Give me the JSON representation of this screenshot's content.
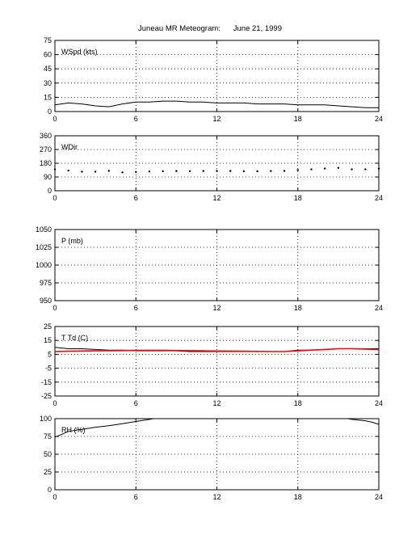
{
  "figure": {
    "title": "Juneau MR Meteogram:      June 21, 1999"
  },
  "chart_data": [
    {
      "type": "line",
      "label": "WSpd (kts)",
      "xlim": [
        0,
        24
      ],
      "xticks": [
        0,
        6,
        12,
        18,
        24
      ],
      "ylim": [
        0,
        75
      ],
      "yticks": [
        0,
        15,
        30,
        45,
        60,
        75
      ],
      "grid": true,
      "series": [
        {
          "color": "#000000",
          "x": [
            0,
            1,
            2,
            3,
            4,
            5,
            6,
            7,
            8,
            9,
            10,
            11,
            12,
            13,
            14,
            15,
            16,
            17,
            18,
            19,
            20,
            21,
            22,
            23,
            24
          ],
          "values": [
            7,
            9,
            8,
            6,
            5,
            8,
            10,
            10,
            11,
            11,
            10,
            10,
            9,
            9,
            9,
            8,
            8,
            8,
            7,
            7,
            7,
            6,
            5,
            4,
            4
          ]
        }
      ]
    },
    {
      "type": "scatter",
      "label": "WDir",
      "xlim": [
        0,
        24
      ],
      "xticks": [
        0,
        6,
        12,
        18,
        24
      ],
      "ylim": [
        0,
        360
      ],
      "yticks": [
        0,
        90,
        180,
        270,
        360
      ],
      "grid": true,
      "series": [
        {
          "color": "#000000",
          "x": [
            0,
            1,
            2,
            3,
            4,
            5,
            6,
            7,
            8,
            9,
            10,
            11,
            12,
            13,
            14,
            15,
            16,
            17,
            18,
            19,
            20,
            21,
            22,
            23,
            24
          ],
          "values": [
            140,
            132,
            125,
            125,
            130,
            120,
            123,
            126,
            128,
            129,
            128,
            129,
            130,
            129,
            128,
            128,
            129,
            130,
            135,
            140,
            145,
            150,
            140,
            140,
            145
          ]
        }
      ]
    },
    {
      "type": "line",
      "label": "P (mb)",
      "xlim": [
        0,
        24
      ],
      "xticks": [
        0,
        6,
        12,
        18,
        24
      ],
      "ylim": [
        950,
        1050
      ],
      "yticks": [
        950,
        975,
        1000,
        1025,
        1050
      ],
      "grid": true,
      "series": []
    },
    {
      "type": "line",
      "label": "T Td (C)",
      "xlim": [
        0,
        24
      ],
      "xticks": [
        0,
        6,
        12,
        18,
        24
      ],
      "ylim": [
        -25,
        25
      ],
      "yticks": [
        -25,
        -15,
        -5,
        5,
        15,
        25
      ],
      "grid": true,
      "series": [
        {
          "color": "#000000",
          "x": [
            0,
            1,
            2,
            3,
            4,
            5,
            6,
            7,
            8,
            9,
            10,
            11,
            12,
            13,
            14,
            15,
            16,
            17,
            18,
            19,
            20,
            21,
            22,
            23,
            24
          ],
          "values": [
            10,
            9,
            9,
            8.5,
            8,
            8,
            7.5,
            7.5,
            7.5,
            7.5,
            7,
            7,
            7,
            7,
            7,
            7,
            7,
            7,
            8,
            8,
            8.5,
            9,
            9,
            9,
            9
          ]
        },
        {
          "color": "#ff0000",
          "x": [
            0,
            1,
            2,
            3,
            4,
            5,
            6,
            7,
            8,
            9,
            10,
            11,
            12,
            13,
            14,
            15,
            16,
            17,
            18,
            19,
            20,
            21,
            22,
            23,
            24
          ],
          "values": [
            7,
            7.2,
            7.4,
            7.5,
            7.6,
            7.7,
            7.8,
            7.8,
            7.8,
            7.7,
            7.6,
            7.5,
            7.4,
            7.3,
            7.2,
            7.1,
            7,
            7,
            7.5,
            8,
            8.5,
            9,
            9,
            8.8,
            8.5
          ]
        }
      ]
    },
    {
      "type": "line",
      "label": "RH (%)",
      "xlim": [
        0,
        24
      ],
      "xticks": [
        0,
        6,
        12,
        18,
        24
      ],
      "ylim": [
        0,
        100
      ],
      "yticks": [
        0,
        25,
        50,
        75,
        100
      ],
      "grid": true,
      "series": [
        {
          "color": "#000000",
          "x": [
            0,
            0.5,
            1,
            2,
            3,
            4,
            5,
            6,
            7,
            7.3
          ],
          "values": [
            74,
            78,
            82,
            85,
            88,
            90,
            93,
            96,
            99,
            100
          ]
        },
        {
          "color": "#000000",
          "x": [
            21.7,
            22,
            22.5,
            23,
            23.5,
            24
          ],
          "values": [
            100,
            99,
            98,
            97,
            95,
            92
          ]
        }
      ]
    }
  ]
}
